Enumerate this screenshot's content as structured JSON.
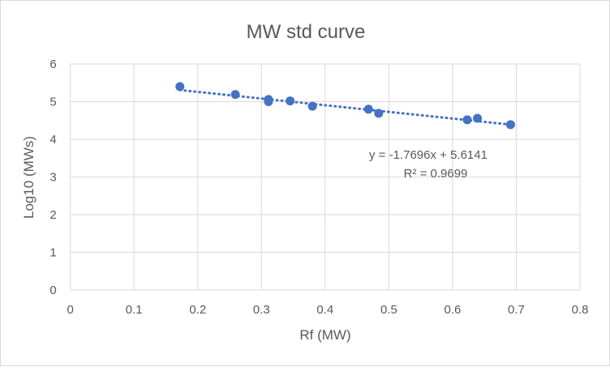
{
  "chart_data": {
    "type": "scatter",
    "title": "MW std curve",
    "xlabel": "Rf (MW)",
    "ylabel": "Log10 (MWs)",
    "xlim": [
      0,
      0.8
    ],
    "ylim": [
      0,
      6
    ],
    "xticks": [
      "0",
      "0.1",
      "0.2",
      "0.3",
      "0.4",
      "0.5",
      "0.6",
      "0.7",
      "0.8"
    ],
    "yticks": [
      "0",
      "1",
      "2",
      "3",
      "4",
      "5",
      "6"
    ],
    "grid": true,
    "points": [
      {
        "x": 0.172,
        "y": 5.4
      },
      {
        "x": 0.259,
        "y": 5.19
      },
      {
        "x": 0.311,
        "y": 5.06
      },
      {
        "x": 0.311,
        "y": 5.0
      },
      {
        "x": 0.345,
        "y": 5.02
      },
      {
        "x": 0.38,
        "y": 4.88
      },
      {
        "x": 0.468,
        "y": 4.8
      },
      {
        "x": 0.484,
        "y": 4.69
      },
      {
        "x": 0.623,
        "y": 4.52
      },
      {
        "x": 0.639,
        "y": 4.56
      },
      {
        "x": 0.691,
        "y": 4.39
      }
    ],
    "trendline": {
      "type": "linear",
      "slope": -1.7696,
      "intercept": 5.6141,
      "style": "dotted"
    },
    "equation_label": "y = -1.7696x + 5.6141",
    "r2_label": "R² = 0.9699",
    "colors": {
      "marker": "#4472c4",
      "grid": "#d9d9d9",
      "text": "#595959"
    }
  }
}
